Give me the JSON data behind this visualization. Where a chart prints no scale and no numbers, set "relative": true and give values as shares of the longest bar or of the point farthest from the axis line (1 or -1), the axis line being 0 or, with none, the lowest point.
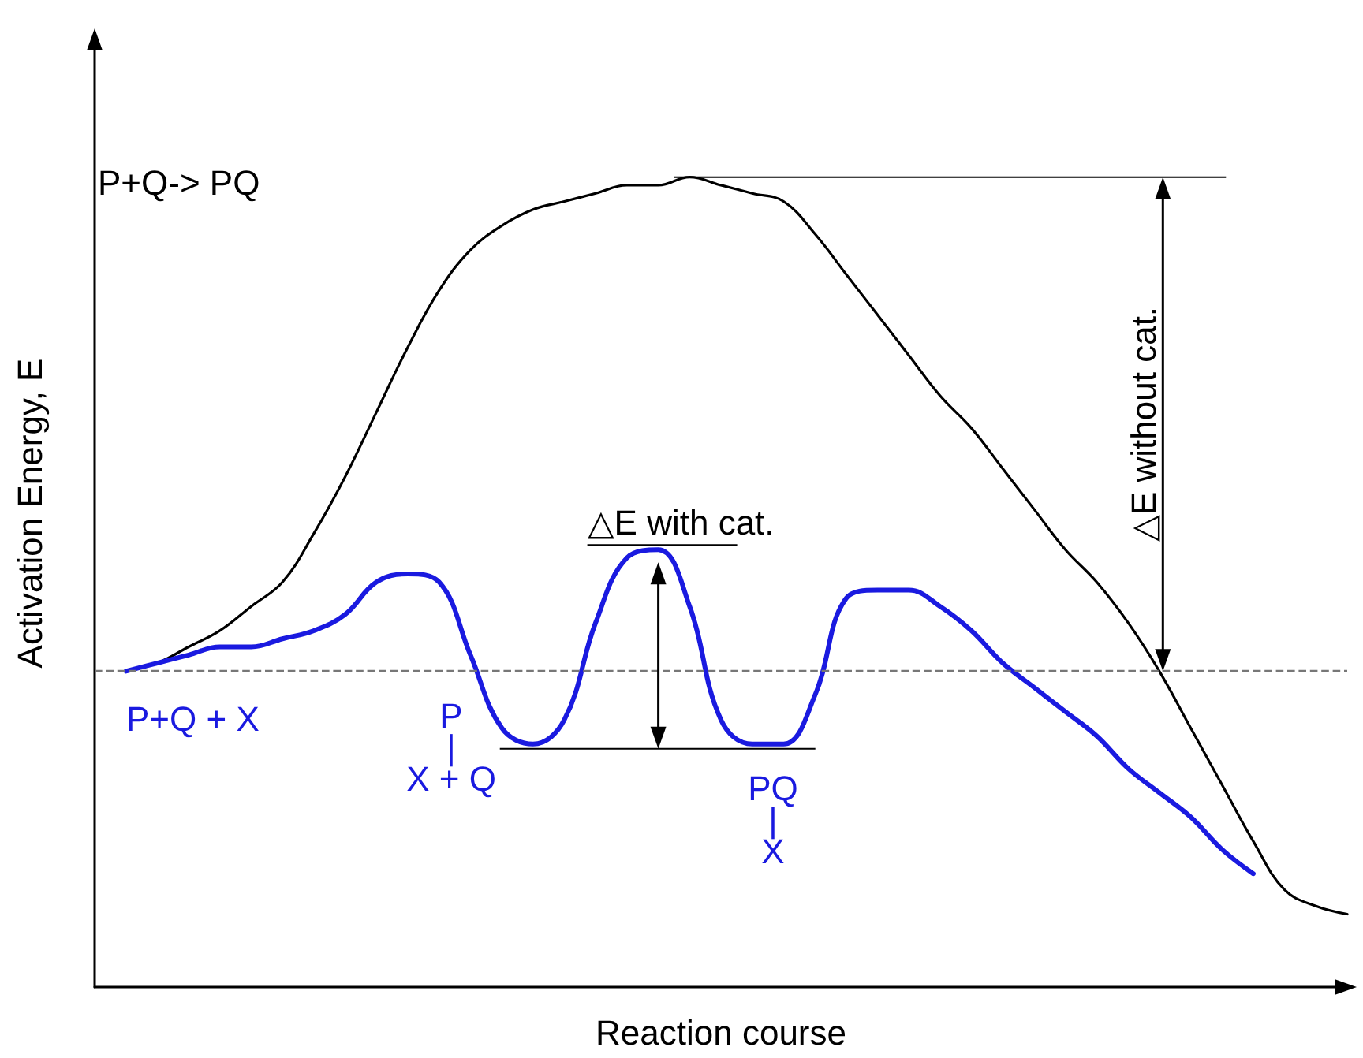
{
  "chart_data": {
    "type": "line",
    "relative": true,
    "xlabel": "Reaction course",
    "ylabel": "Activation Energy, E",
    "categories": [
      null,
      null,
      null,
      null,
      null,
      null,
      null,
      null,
      null,
      null,
      null,
      null,
      null,
      null,
      null,
      null,
      null,
      null,
      null,
      null,
      null,
      null,
      null,
      null,
      null,
      null,
      null,
      null,
      null,
      null,
      null,
      null,
      null,
      null,
      null,
      null,
      null,
      null,
      null,
      null,
      null
    ],
    "series": [
      {
        "color": "#000000",
        "values": [
          null,
          0.39,
          0.4,
          0.42,
          0.44,
          0.47,
          0.5,
          0.56,
          0.63,
          0.71,
          0.79,
          0.86,
          0.91,
          0.94,
          0.96,
          0.97,
          0.98,
          0.99,
          0.99,
          1,
          0.99,
          0.98,
          0.97,
          0.93,
          0.88,
          0.83,
          0.78,
          0.73,
          0.69,
          0.64,
          0.59,
          0.54,
          0.5,
          0.45,
          0.39,
          0.32,
          0.25,
          0.18,
          0.12,
          0.1,
          0.09
        ]
      },
      {
        "color": "#1a1ae0",
        "values": [
          null,
          0.39,
          0.4,
          0.41,
          0.42,
          0.42,
          0.43,
          0.44,
          0.46,
          0.5,
          0.51,
          0.5,
          0.41,
          0.32,
          0.3,
          0.33,
          0.45,
          0.53,
          0.54,
          0.47,
          0.33,
          0.3,
          0.3,
          0.36,
          0.48,
          0.49,
          0.49,
          0.47,
          0.44,
          0.4,
          0.37,
          0.34,
          0.31,
          0.27,
          0.24,
          0.21,
          0.17,
          0.14,
          null,
          null,
          null
        ]
      }
    ],
    "ref_lines": [
      {
        "axis": "y",
        "value": 0.39,
        "color": "#777777",
        "line_style": "dashed"
      }
    ],
    "annotations": [
      "P+Q-> PQ",
      "△E without cat.",
      "△E with cat.",
      "P+Q + X",
      "P\n|\nX + Q",
      "PQ\n|\nX"
    ],
    "grid": false,
    "marker": "none",
    "line_style": "solid"
  }
}
